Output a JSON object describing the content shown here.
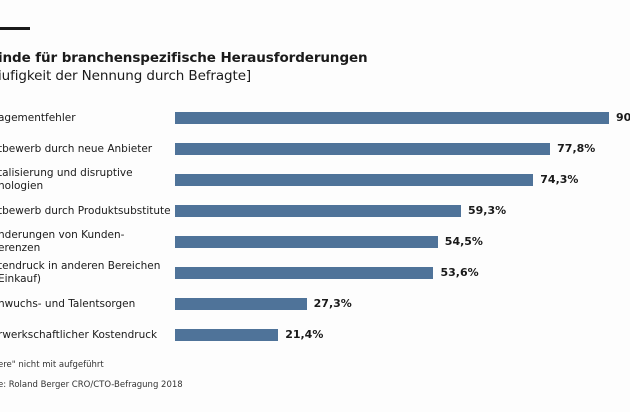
{
  "chart_data": {
    "type": "bar",
    "orientation": "horizontal",
    "title": "inde für branchenspezifische Herausforderungen",
    "subtitle": "iufigkeit der Nennung durch Befragte]",
    "categories": [
      [
        "agementfehler"
      ],
      [
        "tbewerb durch neue Anbieter"
      ],
      [
        "talisierung und disruptive",
        "nologien"
      ],
      [
        "tbewerb durch Produktsubstitute"
      ],
      [
        "nderungen von Kunden-",
        "erenzen"
      ],
      [
        "tendruck in anderen Bereichen",
        " Einkauf)"
      ],
      [
        "nwuchs- und Talentsorgen"
      ],
      [
        "rwerkschaftlicher Kostendruck"
      ]
    ],
    "values": [
      90,
      77.8,
      74.3,
      59.3,
      54.5,
      53.6,
      27.3,
      21.4
    ],
    "value_labels": [
      "90",
      "77,8%",
      "74,3%",
      "59,3%",
      "54,5%",
      "53,6%",
      "27,3%",
      "21,4%"
    ],
    "xlim": [
      0,
      100
    ],
    "bar_color": "#4f7399",
    "grid": false,
    "notes": [
      "ere\" nicht mit aufgeführt",
      "e: Roland Berger CRO/CTO-Befragung 2018"
    ]
  }
}
